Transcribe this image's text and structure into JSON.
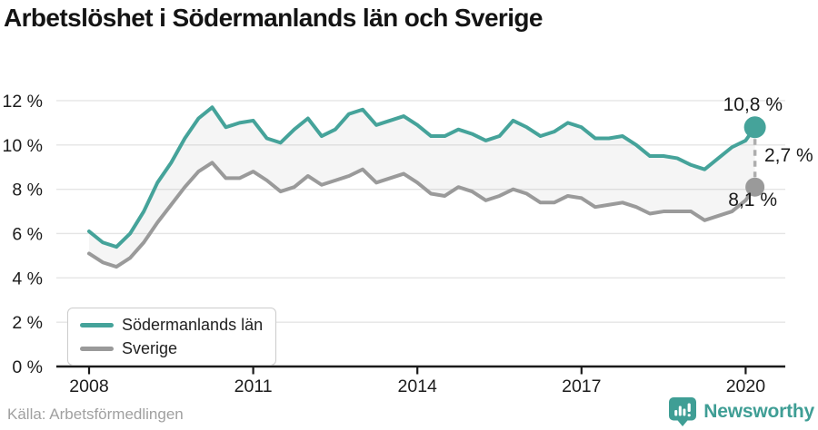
{
  "title": "Arbetslöshet i Södermanlands län och Sverige",
  "source": "Källa: Arbetsförmedlingen",
  "branding": {
    "wordmark": "Newsworthy",
    "color": "#3f9e95"
  },
  "colors": {
    "accent_teal": "#45a39a",
    "series_gray": "#9a9a9a",
    "gridline": "#e5e5e5",
    "axis": "#1a1a1a",
    "band_fill": "rgba(125,125,125,0.08)",
    "connector": "#aeaeae"
  },
  "chart_data": {
    "type": "line",
    "title": "Arbetslöshet i Södermanlands län och Sverige",
    "xlabel": "",
    "ylabel": "",
    "ylim": [
      0,
      12
    ],
    "grid": true,
    "legend_position": "bottom-left",
    "band_between_series": true,
    "x": [
      2008,
      2008.25,
      2008.5,
      2008.75,
      2009,
      2009.25,
      2009.5,
      2009.75,
      2010,
      2010.25,
      2010.5,
      2010.75,
      2011,
      2011.25,
      2011.5,
      2011.75,
      2012,
      2012.25,
      2012.5,
      2012.75,
      2013,
      2013.25,
      2013.5,
      2013.75,
      2014,
      2014.25,
      2014.5,
      2014.75,
      2015,
      2015.25,
      2015.5,
      2015.75,
      2016,
      2016.25,
      2016.5,
      2016.75,
      2017,
      2017.25,
      2017.5,
      2017.75,
      2018,
      2018.25,
      2018.5,
      2018.75,
      2019,
      2019.25,
      2019.5,
      2019.75,
      2020,
      2020.17
    ],
    "series": [
      {
        "name": "Södermanlands län",
        "color": "#45a39a",
        "end_value": 10.8,
        "values": [
          6.1,
          5.6,
          5.4,
          6.0,
          7.0,
          8.3,
          9.2,
          10.3,
          11.2,
          11.7,
          10.8,
          11.0,
          11.1,
          10.3,
          10.1,
          10.7,
          11.2,
          10.4,
          10.7,
          11.4,
          11.6,
          10.9,
          11.1,
          11.3,
          10.9,
          10.4,
          10.4,
          10.7,
          10.5,
          10.2,
          10.4,
          11.1,
          10.8,
          10.4,
          10.6,
          11.0,
          10.8,
          10.3,
          10.3,
          10.4,
          10.0,
          9.5,
          9.5,
          9.4,
          9.1,
          8.9,
          9.4,
          9.9,
          10.2,
          10.8
        ]
      },
      {
        "name": "Sverige",
        "color": "#9a9a9a",
        "end_value": 8.1,
        "values": [
          5.1,
          4.7,
          4.5,
          4.9,
          5.6,
          6.5,
          7.3,
          8.1,
          8.8,
          9.2,
          8.5,
          8.5,
          8.8,
          8.4,
          7.9,
          8.1,
          8.6,
          8.2,
          8.4,
          8.6,
          8.9,
          8.3,
          8.5,
          8.7,
          8.3,
          7.8,
          7.7,
          8.1,
          7.9,
          7.5,
          7.7,
          8.0,
          7.8,
          7.4,
          7.4,
          7.7,
          7.6,
          7.2,
          7.3,
          7.4,
          7.2,
          6.9,
          7.0,
          7.0,
          7.0,
          6.6,
          6.8,
          7.0,
          7.5,
          8.1
        ]
      }
    ],
    "yticks": [
      {
        "value": 0,
        "label": "0 %"
      },
      {
        "value": 2,
        "label": "2 %"
      },
      {
        "value": 4,
        "label": "4 %"
      },
      {
        "value": 6,
        "label": "6 %"
      },
      {
        "value": 8,
        "label": "8 %"
      },
      {
        "value": 10,
        "label": "10 %"
      },
      {
        "value": 12,
        "label": "12 %"
      }
    ],
    "xticks": [
      {
        "value": 2008,
        "label": "2008"
      },
      {
        "value": 2011,
        "label": "2011"
      },
      {
        "value": 2014,
        "label": "2014"
      },
      {
        "value": 2017,
        "label": "2017"
      },
      {
        "value": 2020,
        "label": "2020"
      }
    ],
    "annotations": {
      "series1_end_label": "10,8 %",
      "gap_label": "2,7 %",
      "series2_end_label": "8,1 %"
    }
  }
}
